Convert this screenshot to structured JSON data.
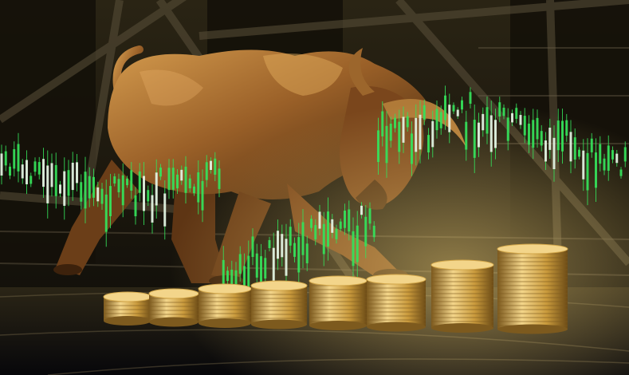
{
  "scene": {
    "subject": "bronze-bull-sculpture",
    "coin_stacks": [
      1,
      2,
      3,
      4,
      5,
      6,
      7
    ],
    "palette": {
      "bronze_light": "#c4893f",
      "bronze_mid": "#8a5523",
      "bronze_dark": "#4a2a10",
      "gold_light": "#f3d58a",
      "gold_mid": "#d3a74a",
      "gold_dark": "#7d5a1e",
      "candle_green": "#35e05a",
      "background_dark": "#0f0d08"
    }
  }
}
